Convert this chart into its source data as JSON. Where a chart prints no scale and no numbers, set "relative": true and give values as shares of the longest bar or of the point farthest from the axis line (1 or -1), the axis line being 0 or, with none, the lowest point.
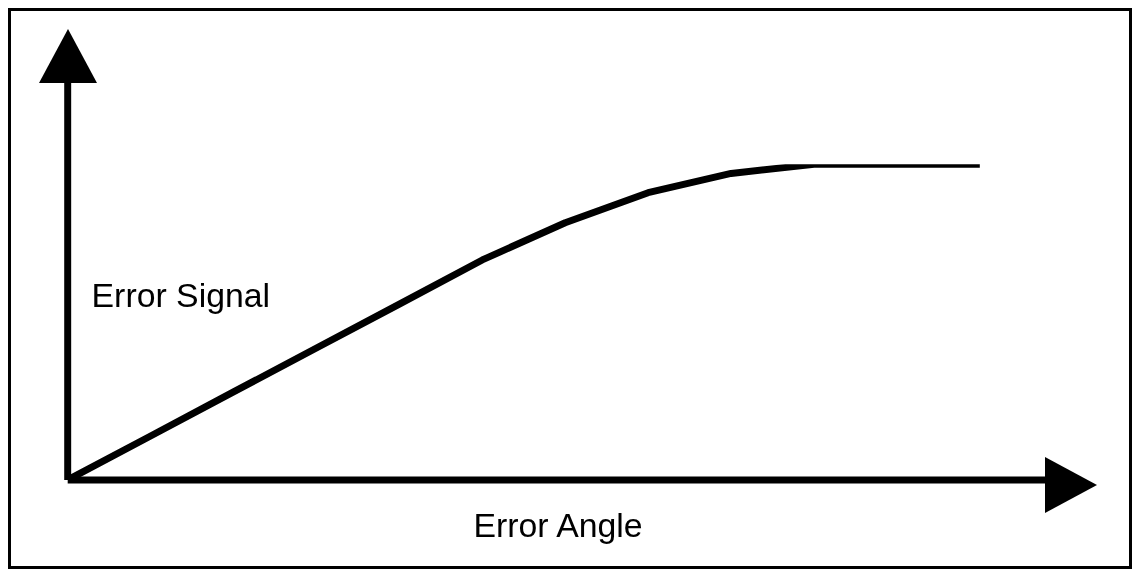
{
  "chart_data": {
    "type": "line",
    "xlabel": "Error Angle",
    "ylabel": "Error Signal",
    "relative": true,
    "categories": [
      null,
      null,
      null,
      null,
      null,
      null,
      null,
      null,
      null,
      null,
      null,
      null
    ],
    "series": [
      {
        "color": "#000000",
        "values": [
          0,
          0.139,
          0.279,
          0.418,
          0.557,
          0.697,
          0.815,
          0.91,
          0.971,
          1,
          1,
          1
        ]
      }
    ],
    "legend": false,
    "marker": "none",
    "line_style": "solid"
  }
}
